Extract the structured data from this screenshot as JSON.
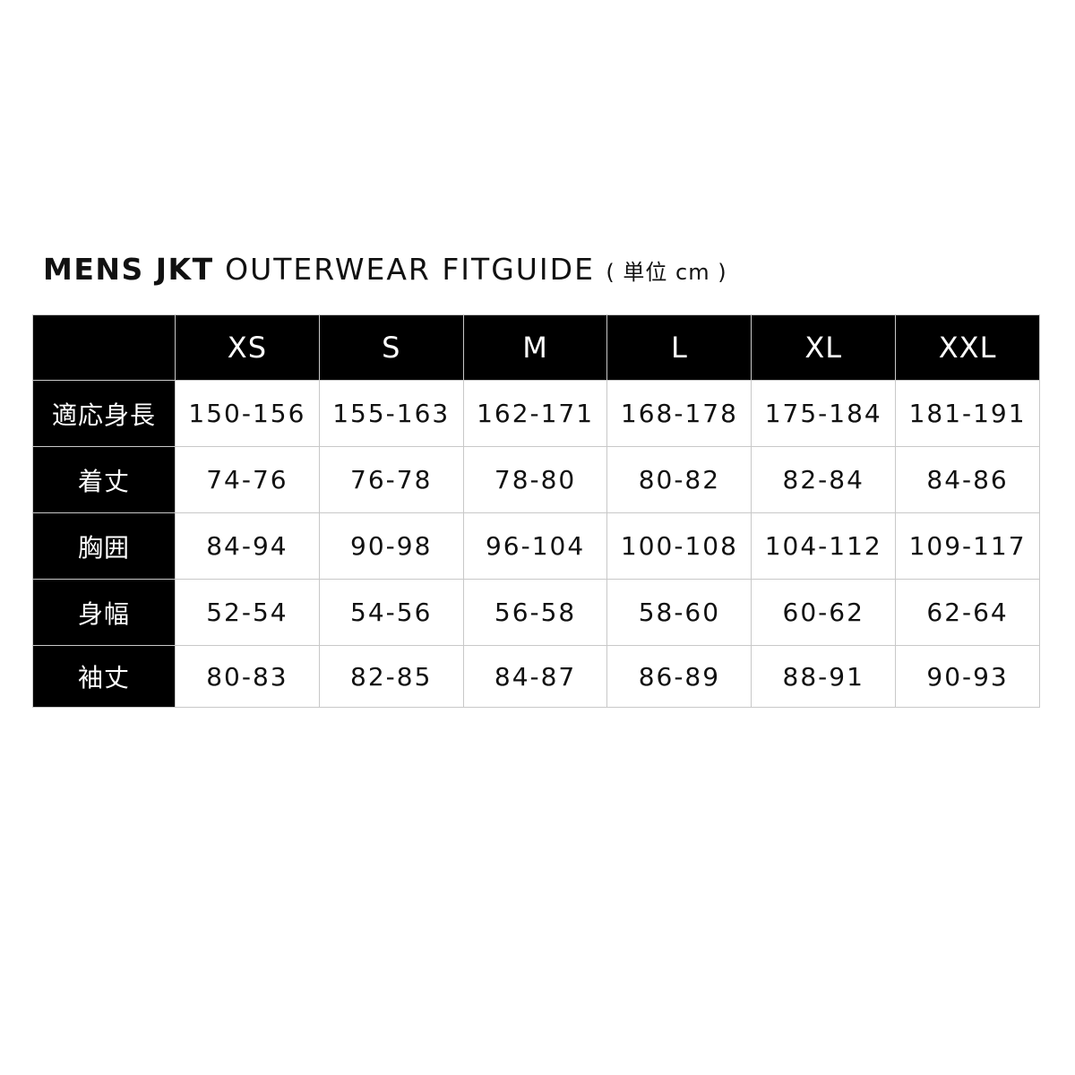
{
  "title": {
    "bold": "MENS JKT",
    "regular": "OUTERWEAR FITGUIDE",
    "unit": "( 単位 cm )"
  },
  "table": {
    "corner": "",
    "columns": [
      "XS",
      "S",
      "M",
      "L",
      "XL",
      "XXL"
    ],
    "rows": [
      {
        "label": "適応身長",
        "values": [
          "150-156",
          "155-163",
          "162-171",
          "168-178",
          "175-184",
          "181-191"
        ]
      },
      {
        "label": "着丈",
        "values": [
          "74-76",
          "76-78",
          "78-80",
          "80-82",
          "82-84",
          "84-86"
        ]
      },
      {
        "label": "胸囲",
        "values": [
          "84-94",
          "90-98",
          "96-104",
          "100-108",
          "104-112",
          "109-117"
        ]
      },
      {
        "label": "身幅",
        "values": [
          "52-54",
          "54-56",
          "56-58",
          "58-60",
          "60-62",
          "62-64"
        ]
      },
      {
        "label": "袖丈",
        "values": [
          "80-83",
          "82-85",
          "84-87",
          "86-89",
          "88-91",
          "90-93"
        ]
      }
    ]
  },
  "colors": {
    "header_bg": "#000000",
    "header_text": "#ffffff",
    "grid": "#c8c8c8"
  }
}
